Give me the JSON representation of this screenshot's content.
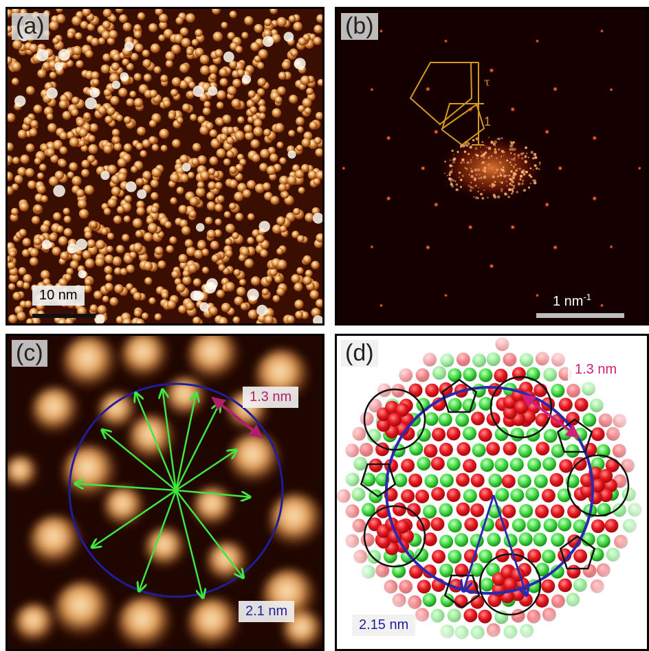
{
  "panels": {
    "a": {
      "label": "(a)",
      "scale_bar": "10 nm"
    },
    "b": {
      "label": "(b)",
      "scale_bar_base": "1 nm",
      "scale_bar_exp": "-1",
      "ratio_tau": "τ",
      "ratio_one": "1"
    },
    "c": {
      "label": "(c)",
      "inner_distance": "1.3 nm",
      "radius": "2.1 nm"
    },
    "d": {
      "label": "(d)",
      "inner_distance": "1.3 nm",
      "radius": "2.15 nm"
    }
  },
  "colors": {
    "stm_bright": "#f3c98a",
    "stm_mid": "#c86a1e",
    "fft_spot": "#ff6a2a",
    "pentagon": "#d89a1e",
    "circle": "#1e1e9a",
    "arrow_green": "#3ee83e",
    "arrow_magenta": "#b0206a",
    "atom_red": "#e8161e",
    "atom_green": "#44dd44"
  }
}
